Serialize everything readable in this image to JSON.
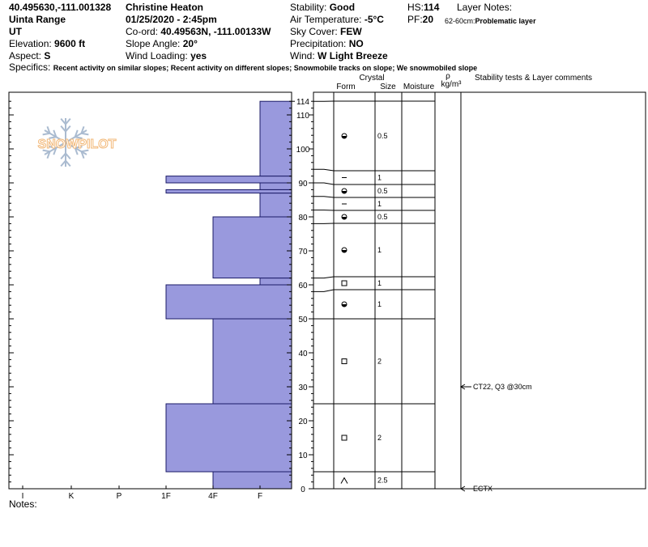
{
  "header": {
    "coords": "40.495630,-111.001328",
    "range": "Uinta Range",
    "state": "UT",
    "elevation_label": "Elevation:",
    "elevation": "9600 ft",
    "aspect_label": "Aspect:",
    "aspect": "S",
    "observer": "Christine Heaton",
    "datetime": "01/25/2020 - 2:45pm",
    "coord_label": "Co-ord:",
    "coord": "40.49563N, -111.00133W",
    "slope_label": "Slope Angle:",
    "slope": "20°",
    "wind_loading_label": "Wind Loading:",
    "wind_loading": "yes",
    "stability_label": "Stability:",
    "stability": "Good",
    "air_temp_label": "Air Temperature:",
    "air_temp": "-5°C",
    "sky_label": "Sky Cover:",
    "sky": "FEW",
    "precip_label": "Precipitation:",
    "precip": "NO",
    "wind_label": "Wind:",
    "wind": "W Light Breeze",
    "hs_label": "HS:",
    "hs": "114",
    "pf_label": "PF:",
    "pf": "20",
    "layer_notes_label": "Layer Notes:",
    "layer_note": "62-60cm:",
    "layer_note_text": "Problematic layer",
    "specifics_label": "Specifics:",
    "specifics": "Recent activity on similar slopes; Recent activity on different slopes; Snowmobile tracks on slope; We snowmobiled slope"
  },
  "columns": {
    "crystal": "Crystal",
    "form": "Form",
    "size": "Size",
    "moisture": "Moisture",
    "rho": "ρ",
    "density_unit": "kg/m³",
    "stability": "Stability tests & Layer comments"
  },
  "logo_text": "SNOWPILOT",
  "notes_label": "Notes:",
  "chart_data": {
    "type": "bar",
    "orientation": "horizontal",
    "xlabel": "",
    "ylabel": "",
    "x_categories": [
      "I",
      "K",
      "P",
      "1F",
      "4F",
      "F"
    ],
    "y_ticks": [
      0,
      10,
      20,
      30,
      40,
      50,
      60,
      70,
      80,
      90,
      100,
      110
    ],
    "ylim": [
      0,
      114
    ],
    "hs_tick": 114,
    "hardness_layers": [
      {
        "bottom": 0,
        "top": 5,
        "hardness": "4F"
      },
      {
        "bottom": 5,
        "top": 25,
        "hardness": "1F"
      },
      {
        "bottom": 25,
        "top": 50,
        "hardness": "4F"
      },
      {
        "bottom": 50,
        "top": 60,
        "hardness": "1F"
      },
      {
        "bottom": 60,
        "top": 62,
        "hardness": "F"
      },
      {
        "bottom": 62,
        "top": 80,
        "hardness": "4F"
      },
      {
        "bottom": 80,
        "top": 87,
        "hardness": "F"
      },
      {
        "bottom": 87,
        "top": 88,
        "hardness": "1F"
      },
      {
        "bottom": 88,
        "top": 90,
        "hardness": "F"
      },
      {
        "bottom": 90,
        "top": 92,
        "hardness": "1F"
      },
      {
        "bottom": 92,
        "top": 114,
        "hardness": "F"
      }
    ],
    "strata": [
      {
        "bottom": 0,
        "top": 5,
        "form": "depth-hoar",
        "size": "2.5"
      },
      {
        "bottom": 5,
        "top": 25,
        "form": "facet",
        "size": "2"
      },
      {
        "bottom": 25,
        "top": 50,
        "form": "facet",
        "size": "2"
      },
      {
        "bottom": 50,
        "top": 58,
        "form": "rounded",
        "size": "1"
      },
      {
        "bottom": 58,
        "top": 62,
        "form": "facet",
        "size": "1"
      },
      {
        "bottom": 62,
        "top": 78,
        "form": "rounded",
        "size": "1"
      },
      {
        "bottom": 78,
        "top": 82,
        "form": "rounded",
        "size": "0.5"
      },
      {
        "bottom": 82,
        "top": 86,
        "form": "fragment",
        "size": "1"
      },
      {
        "bottom": 86,
        "top": 90,
        "form": "rounded",
        "size": "0.5"
      },
      {
        "bottom": 90,
        "top": 94,
        "form": "fragment",
        "size": "1"
      },
      {
        "bottom": 94,
        "top": 114,
        "form": "rounded",
        "size": "0.5"
      }
    ],
    "tests": [
      {
        "depth": 30,
        "label": "CT22, Q3 @30cm"
      },
      {
        "depth": 0,
        "label": "ECTX"
      }
    ],
    "colors": {
      "bar_fill": "#9999dd",
      "bar_stroke": "#1a1a66",
      "logo": "#f2b878",
      "snowflake": "#aabbd0"
    }
  }
}
